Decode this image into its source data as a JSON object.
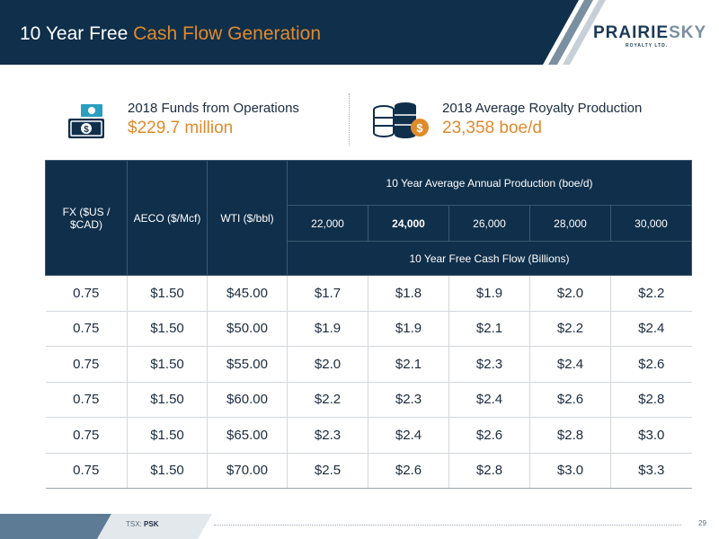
{
  "header": {
    "title_plain": "10 Year Free ",
    "title_accent": "Cash Flow Generation",
    "logo_main": "PRAIRIE",
    "logo_accent": "SKY",
    "logo_sub": "ROYALTY LTD.",
    "band_color": "#0f2f4b",
    "accent_color": "#e08a2c"
  },
  "kpis": [
    {
      "icon": "cash-icon",
      "label": "2018 Funds from Operations",
      "value": "$229.7 million"
    },
    {
      "icon": "oil-barrels-icon",
      "label": "2018 Average Royalty Production",
      "value": "23,358 boe/d"
    }
  ],
  "table": {
    "headers": {
      "fx": "FX ($US / $CAD)",
      "aeco": "AECO ($/Mcf)",
      "wti": "WTI ($/bbl)",
      "production_group": "10 Year Average Annual Production (boe/d)",
      "production_levels": [
        "22,000",
        "24,000",
        "26,000",
        "28,000",
        "30,000"
      ],
      "fcf_caption": "10 Year Free Cash Flow (Billions)"
    },
    "rows": [
      [
        "0.75",
        "$1.50",
        "$45.00",
        "$1.7",
        "$1.8",
        "$1.9",
        "$2.0",
        "$2.2"
      ],
      [
        "0.75",
        "$1.50",
        "$50.00",
        "$1.9",
        "$1.9",
        "$2.1",
        "$2.2",
        "$2.4"
      ],
      [
        "0.75",
        "$1.50",
        "$55.00",
        "$2.0",
        "$2.1",
        "$2.3",
        "$2.4",
        "$2.6"
      ],
      [
        "0.75",
        "$1.50",
        "$60.00",
        "$2.2",
        "$2.3",
        "$2.4",
        "$2.6",
        "$2.8"
      ],
      [
        "0.75",
        "$1.50",
        "$65.00",
        "$2.3",
        "$2.4",
        "$2.6",
        "$2.8",
        "$3.0"
      ],
      [
        "0.75",
        "$1.50",
        "$70.00",
        "$2.5",
        "$2.6",
        "$2.8",
        "$3.0",
        "$3.3"
      ]
    ]
  },
  "footer": {
    "exchange_label": "TSX: ",
    "ticker": "PSK",
    "page_number": "29"
  }
}
